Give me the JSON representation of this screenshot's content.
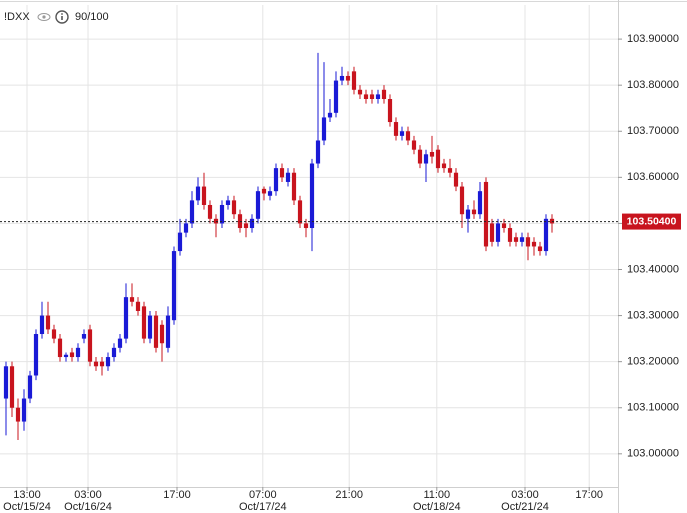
{
  "chart_data": {
    "type": "candlestick",
    "symbol": "!DXX",
    "counter": "90/100",
    "up_color": "#1a1ad6",
    "down_color": "#c8141e",
    "grid": true,
    "ylim": [
      102.928,
      103.974
    ],
    "yticks": [
      {
        "value": 103.0,
        "label": "103.00000"
      },
      {
        "value": 103.1,
        "label": "103.10000"
      },
      {
        "value": 103.2,
        "label": "103.20000"
      },
      {
        "value": 103.3,
        "label": "103.30000"
      },
      {
        "value": 103.4,
        "label": "103.40000"
      },
      {
        "value": 103.5,
        "label": "103.50000"
      },
      {
        "value": 103.6,
        "label": "103.60000"
      },
      {
        "value": 103.7,
        "label": "103.70000"
      },
      {
        "value": 103.8,
        "label": "103.80000"
      },
      {
        "value": 103.9,
        "label": "103.90000"
      }
    ],
    "xlim": [
      -1,
      102
    ],
    "xticks": [
      {
        "value": 3.5,
        "label": "13:00"
      },
      {
        "value": 13.67,
        "label": "03:00"
      },
      {
        "value": 28.5,
        "label": "17:00"
      },
      {
        "value": 42.8,
        "label": "07:00"
      },
      {
        "value": 57.2,
        "label": "21:00"
      },
      {
        "value": 71.8,
        "label": "11:00"
      },
      {
        "value": 86.5,
        "label": "03:00"
      },
      {
        "value": 97.2,
        "label": "17:00"
      }
    ],
    "xtick_dates": [
      "Oct/15/24",
      "Oct/16/24",
      null,
      "Oct/17/24",
      null,
      "Oct/18/24",
      "Oct/21/24",
      null
    ],
    "last_price": {
      "value": 103.504,
      "label": "103.50400"
    },
    "open": [
      103.12,
      103.19,
      103.1,
      103.07,
      103.12,
      103.17,
      103.26,
      103.3,
      103.27,
      103.25,
      103.21,
      103.22,
      103.21,
      103.25,
      103.27,
      103.2,
      103.2,
      103.19,
      103.21,
      103.23,
      103.25,
      103.34,
      103.33,
      103.32,
      103.25,
      103.3,
      103.28,
      103.23,
      103.29,
      103.44,
      103.48,
      103.5,
      103.55,
      103.58,
      103.54,
      103.51,
      103.5,
      103.54,
      103.55,
      103.52,
      103.5,
      103.49,
      103.51,
      103.575,
      103.56,
      103.57,
      103.62,
      103.59,
      103.61,
      103.55,
      103.5,
      103.49,
      103.63,
      103.68,
      103.73,
      103.74,
      103.81,
      103.82,
      103.83,
      103.79,
      103.78,
      103.78,
      103.77,
      103.79,
      103.77,
      103.72,
      103.69,
      103.7,
      103.68,
      103.66,
      103.63,
      103.655,
      103.66,
      103.63,
      103.62,
      103.61,
      103.58,
      103.51,
      103.53,
      103.52,
      103.59,
      103.5,
      103.46,
      103.5,
      103.49,
      103.47,
      103.46,
      103.47,
      103.46,
      103.45,
      103.44,
      103.51
    ],
    "high": [
      103.2,
      103.2,
      103.12,
      103.14,
      103.18,
      103.27,
      103.33,
      103.33,
      103.28,
      103.26,
      103.22,
      103.23,
      103.24,
      103.27,
      103.28,
      103.21,
      103.21,
      103.22,
      103.24,
      103.26,
      103.37,
      103.37,
      103.34,
      103.33,
      103.31,
      103.31,
      103.29,
      103.32,
      103.45,
      103.51,
      103.51,
      103.57,
      103.6,
      103.61,
      103.55,
      103.52,
      103.55,
      103.56,
      103.56,
      103.53,
      103.51,
      103.52,
      103.58,
      103.58,
      103.58,
      103.63,
      103.63,
      103.62,
      103.62,
      103.56,
      103.51,
      103.64,
      103.87,
      103.85,
      103.77,
      103.83,
      103.84,
      103.83,
      103.84,
      103.8,
      103.79,
      103.79,
      103.79,
      103.8,
      103.78,
      103.73,
      103.71,
      103.71,
      103.69,
      103.67,
      103.66,
      103.69,
      103.67,
      103.64,
      103.64,
      103.62,
      103.59,
      103.54,
      103.55,
      103.59,
      103.6,
      103.51,
      103.51,
      103.51,
      103.5,
      103.48,
      103.48,
      103.48,
      103.47,
      103.46,
      103.52,
      103.52
    ],
    "low": [
      103.04,
      103.08,
      103.03,
      103.05,
      103.11,
      103.16,
      103.25,
      103.26,
      103.24,
      103.2,
      103.2,
      103.2,
      103.2,
      103.24,
      103.19,
      103.18,
      103.17,
      103.18,
      103.2,
      103.22,
      103.24,
      103.32,
      103.3,
      103.24,
      103.24,
      103.22,
      103.2,
      103.22,
      103.28,
      103.43,
      103.47,
      103.49,
      103.54,
      103.53,
      103.5,
      103.47,
      103.49,
      103.53,
      103.51,
      103.48,
      103.47,
      103.48,
      103.5,
      103.55,
      103.55,
      103.56,
      103.59,
      103.58,
      103.54,
      103.49,
      103.47,
      103.44,
      103.62,
      103.67,
      103.72,
      103.73,
      103.8,
      103.8,
      103.78,
      103.77,
      103.76,
      103.76,
      103.76,
      103.76,
      103.71,
      103.68,
      103.68,
      103.67,
      103.65,
      103.62,
      103.59,
      103.63,
      103.61,
      103.61,
      103.6,
      103.57,
      103.49,
      103.48,
      103.51,
      103.51,
      103.44,
      103.45,
      103.45,
      103.48,
      103.45,
      103.45,
      103.45,
      103.42,
      103.43,
      103.43,
      103.43,
      103.48
    ],
    "close": [
      103.19,
      103.1,
      103.07,
      103.12,
      103.17,
      103.26,
      103.3,
      103.27,
      103.25,
      103.21,
      103.215,
      103.21,
      103.23,
      103.26,
      103.2,
      103.19,
      103.19,
      103.21,
      103.23,
      103.25,
      103.34,
      103.33,
      103.31,
      103.25,
      103.3,
      103.23,
      103.24,
      103.3,
      103.44,
      103.48,
      103.5,
      103.55,
      103.58,
      103.54,
      103.51,
      103.5,
      103.54,
      103.55,
      103.52,
      103.49,
      103.49,
      103.51,
      103.57,
      103.565,
      103.57,
      103.62,
      103.6,
      103.61,
      103.55,
      103.5,
      103.49,
      103.63,
      103.68,
      103.73,
      103.74,
      103.81,
      103.82,
      103.81,
      103.79,
      103.78,
      103.77,
      103.77,
      103.78,
      103.77,
      103.72,
      103.69,
      103.7,
      103.68,
      103.66,
      103.63,
      103.65,
      103.645,
      103.62,
      103.62,
      103.61,
      103.58,
      103.52,
      103.53,
      103.52,
      103.57,
      103.45,
      103.46,
      103.5,
      103.49,
      103.46,
      103.46,
      103.47,
      103.45,
      103.45,
      103.44,
      103.51,
      103.5
    ]
  }
}
